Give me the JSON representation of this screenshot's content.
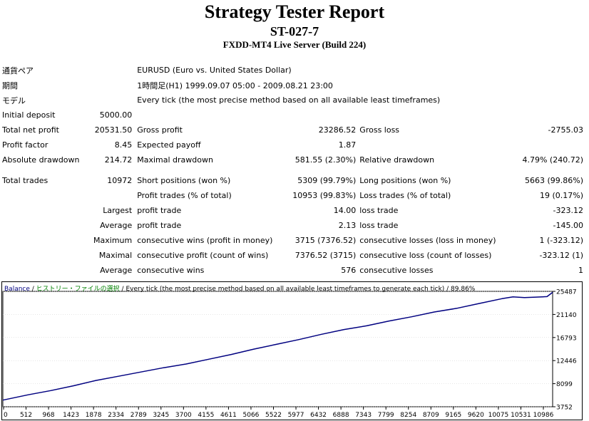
{
  "header": {
    "title": "Strategy Tester Report",
    "strategy": "ST-027-7",
    "server": "FXDD-MT4 Live Server (Build 224)"
  },
  "info": {
    "symbol_label": "通貨ペア",
    "symbol_value": "EURUSD (Euro vs. United States Dollar)",
    "period_label": "期間",
    "period_value": "1時間足(H1) 1999.09.07 05:00 - 2009.08.21 23:00",
    "model_label": "モデル",
    "model_value": "Every tick (the most precise method based on all available least timeframes)"
  },
  "stats": {
    "initial_deposit_label": "Initial deposit",
    "initial_deposit": "5000.00",
    "total_net_profit_label": "Total net profit",
    "total_net_profit": "20531.50",
    "gross_profit_label": "Gross profit",
    "gross_profit": "23286.52",
    "gross_loss_label": "Gross loss",
    "gross_loss": "-2755.03",
    "profit_factor_label": "Profit factor",
    "profit_factor": "8.45",
    "expected_payoff_label": "Expected payoff",
    "expected_payoff": "1.87",
    "absolute_drawdown_label": "Absolute drawdown",
    "absolute_drawdown": "214.72",
    "maximal_drawdown_label": "Maximal drawdown",
    "maximal_drawdown": "581.55 (2.30%)",
    "relative_drawdown_label": "Relative drawdown",
    "relative_drawdown": "4.79% (240.72)",
    "total_trades_label": "Total trades",
    "total_trades": "10972",
    "short_positions_label": "Short positions (won %)",
    "short_positions": "5309 (99.79%)",
    "long_positions_label": "Long positions (won %)",
    "long_positions": "5663 (99.86%)",
    "profit_trades_label": "Profit trades (% of total)",
    "profit_trades": "10953 (99.83%)",
    "loss_trades_label": "Loss trades (% of total)",
    "loss_trades": "19 (0.17%)",
    "largest_label": "Largest",
    "largest_profit_label": "profit trade",
    "largest_profit": "14.00",
    "largest_loss_label": "loss trade",
    "largest_loss": "-323.12",
    "average_label": "Average",
    "average_profit_label": "profit trade",
    "average_profit": "2.13",
    "average_loss_label": "loss trade",
    "average_loss": "-145.00",
    "maximum_label": "Maximum",
    "max_cons_wins_label": "consecutive wins (profit in money)",
    "max_cons_wins": "3715 (7376.52)",
    "max_cons_losses_label": "consecutive losses (loss in money)",
    "max_cons_losses": "1 (-323.12)",
    "maximal_label": "Maximal",
    "maximal_cons_profit_label": "consecutive profit (count of wins)",
    "maximal_cons_profit": "7376.52 (3715)",
    "maximal_cons_loss_label": "consecutive loss (count of losses)",
    "maximal_cons_loss": "-323.12 (1)",
    "average2_label": "Average",
    "avg_cons_wins_label": "consecutive wins",
    "avg_cons_wins": "576",
    "avg_cons_losses_label": "consecutive losses",
    "avg_cons_losses": "1"
  },
  "chart_data": {
    "type": "line",
    "legend": {
      "balance": "Balance",
      "sep": " / ",
      "history": "ヒストリー・ファイルの選択",
      "rest": " / Every tick (the most precise method based on all available least timeframes to generate each tick) / 89.86%"
    },
    "x_ticks": [
      "0",
      "512",
      "968",
      "1423",
      "1878",
      "2334",
      "2789",
      "3245",
      "3700",
      "4155",
      "4611",
      "5066",
      "5522",
      "5977",
      "6432",
      "6888",
      "7343",
      "7799",
      "8254",
      "8709",
      "9165",
      "9620",
      "10075",
      "10531",
      "10986"
    ],
    "y_ticks": [
      "25487",
      "21140",
      "16793",
      "12446",
      "8099",
      "3752"
    ],
    "xlim": [
      0,
      11100
    ],
    "ylim": [
      3752,
      25487
    ],
    "series": [
      {
        "values": [
          [
            0,
            5000
          ],
          [
            512,
            6000
          ],
          [
            968,
            6800
          ],
          [
            1423,
            7700
          ],
          [
            1878,
            8700
          ],
          [
            2334,
            9500
          ],
          [
            2789,
            10300
          ],
          [
            3245,
            11100
          ],
          [
            3700,
            11800
          ],
          [
            4155,
            12700
          ],
          [
            4611,
            13600
          ],
          [
            5066,
            14600
          ],
          [
            5522,
            15500
          ],
          [
            5977,
            16400
          ],
          [
            6432,
            17400
          ],
          [
            6888,
            18300
          ],
          [
            7343,
            19000
          ],
          [
            7799,
            19900
          ],
          [
            8254,
            20700
          ],
          [
            8709,
            21600
          ],
          [
            9165,
            22300
          ],
          [
            9620,
            23200
          ],
          [
            10075,
            24100
          ],
          [
            10300,
            24450
          ],
          [
            10531,
            24300
          ],
          [
            10760,
            24400
          ],
          [
            10986,
            24500
          ],
          [
            11100,
            25300
          ]
        ],
        "color": "#000080"
      }
    ]
  },
  "colors": {
    "line": "#000080",
    "grid": "#cccccc",
    "history_text": "#008000"
  }
}
